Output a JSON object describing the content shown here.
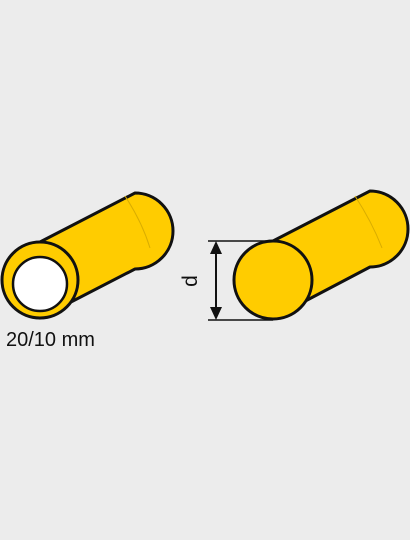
{
  "hollow_cylinder": {
    "size_label": "20/10 mm"
  },
  "solid_cylinder": {
    "dimension_label": "d"
  },
  "colors": {
    "background": "#ececec",
    "cylinder_fill": "#ffcc00",
    "inner_bore": "#ffffff",
    "outline": "#111111"
  }
}
